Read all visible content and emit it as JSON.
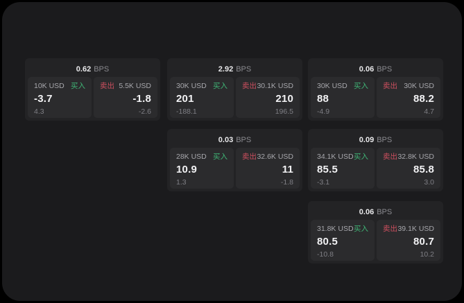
{
  "labels": {
    "bps_unit": "BPS",
    "buy": "买入",
    "sell": "卖出"
  },
  "colors": {
    "background": "#1B1B1D",
    "card": "#232325",
    "panel": "#2B2B2D",
    "buy_accent": "#3FB576",
    "sell_accent": "#CC4F5E"
  },
  "cards": [
    {
      "bps": "0.62",
      "buy": {
        "size": "10K USD",
        "price": "-3.7",
        "sub": "4.3"
      },
      "sell": {
        "size": "5.5K USD",
        "price": "-1.8",
        "sub": "-2.6"
      }
    },
    {
      "bps": "2.92",
      "buy": {
        "size": "30K USD",
        "price": "201",
        "sub": "-188.1"
      },
      "sell": {
        "size": "30.1K USD",
        "price": "210",
        "sub": "196.5"
      }
    },
    {
      "bps": "0.06",
      "buy": {
        "size": "30K USD",
        "price": "88",
        "sub": "-4.9"
      },
      "sell": {
        "size": "30K USD",
        "price": "88.2",
        "sub": "4.7"
      }
    },
    {
      "bps": "0.03",
      "buy": {
        "size": "28K USD",
        "price": "10.9",
        "sub": "1.3"
      },
      "sell": {
        "size": "32.6K USD",
        "price": "11",
        "sub": "-1.8"
      }
    },
    {
      "bps": "0.09",
      "buy": {
        "size": "34.1K USD",
        "price": "85.5",
        "sub": "-3.1"
      },
      "sell": {
        "size": "32.8K USD",
        "price": "85.8",
        "sub": "3.0"
      }
    },
    {
      "bps": "0.06",
      "buy": {
        "size": "31.8K USD",
        "price": "80.5",
        "sub": "-10.8"
      },
      "sell": {
        "size": "39.1K USD",
        "price": "80.7",
        "sub": "10.2"
      }
    }
  ]
}
